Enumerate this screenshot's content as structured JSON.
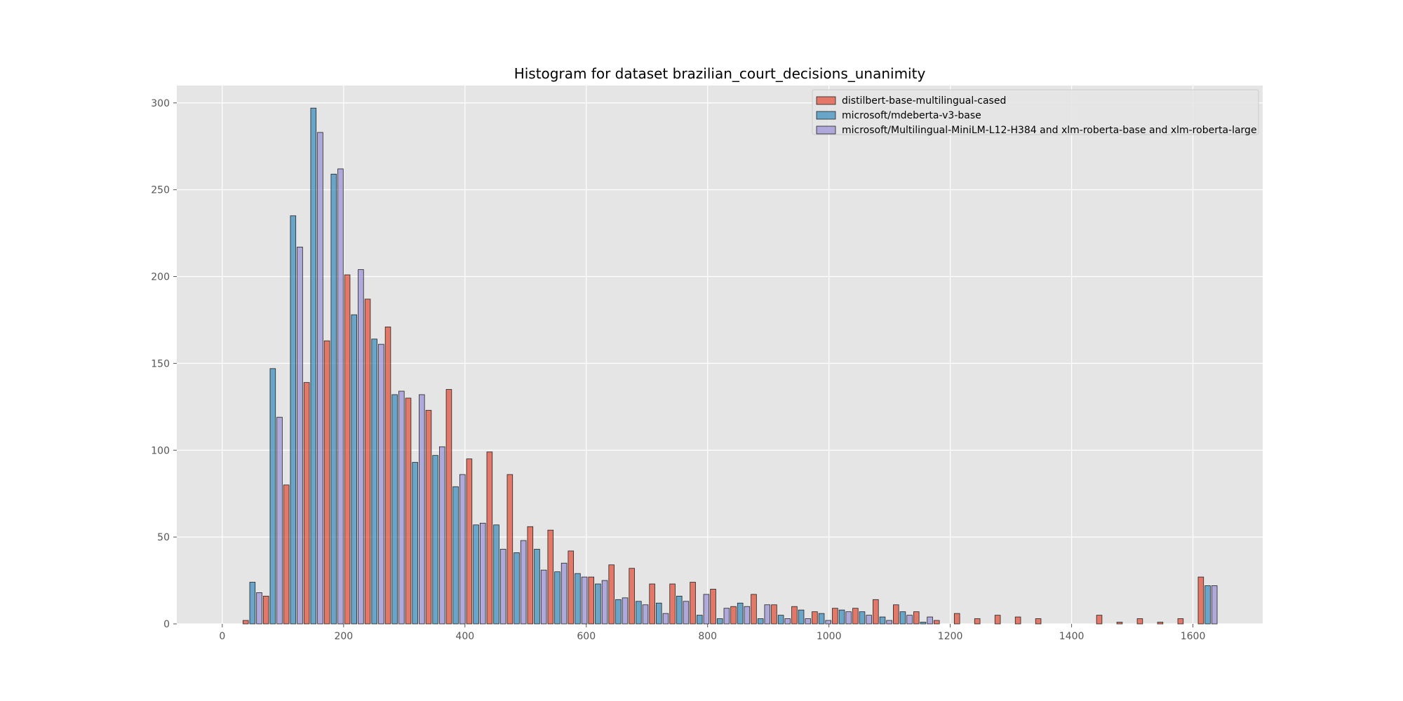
{
  "chart_data": {
    "type": "bar",
    "title": "Histogram for dataset brazilian_court_decisions_unanimity",
    "xlabel": "",
    "ylabel": "",
    "xlim": [
      -75,
      1715
    ],
    "ylim": [
      0,
      310
    ],
    "xticks": [
      0,
      200,
      400,
      600,
      800,
      1000,
      1200,
      1400,
      1600
    ],
    "yticks": [
      0,
      50,
      100,
      150,
      200,
      250,
      300
    ],
    "grid": true,
    "legend_position": "top-right",
    "bin_width": 33.5,
    "bin_starts": [
      33,
      66.5,
      100,
      133.5,
      167,
      200.5,
      234,
      267.5,
      301,
      334.5,
      368,
      401.5,
      435,
      468.5,
      502,
      535.5,
      569,
      602.5,
      636,
      669.5,
      703,
      736.5,
      770,
      803.5,
      837,
      870.5,
      904,
      937.5,
      971,
      1004.5,
      1038,
      1071.5,
      1105,
      1138.5,
      1172,
      1205.5,
      1239,
      1272.5,
      1306,
      1339.5,
      1373,
      1406.5,
      1440,
      1473.5,
      1507,
      1540.5,
      1574,
      1607.5
    ],
    "series": [
      {
        "name": "distilbert-base-multilingual-cased",
        "color": "#E24A33",
        "values": [
          2,
          16,
          80,
          139,
          163,
          201,
          187,
          171,
          130,
          123,
          135,
          95,
          99,
          86,
          56,
          54,
          42,
          27,
          34,
          32,
          23,
          23,
          24,
          20,
          10,
          17,
          11,
          10,
          7,
          9,
          9,
          14,
          11,
          7,
          2,
          6,
          3,
          5,
          4,
          3,
          0,
          0,
          5,
          1,
          3,
          1,
          3,
          27
        ]
      },
      {
        "name": "microsoft/mdeberta-v3-base",
        "color": "#348ABD",
        "values": [
          24,
          147,
          235,
          297,
          259,
          178,
          164,
          132,
          93,
          97,
          79,
          57,
          57,
          41,
          43,
          30,
          29,
          23,
          14,
          13,
          12,
          16,
          5,
          3,
          12,
          3,
          5,
          8,
          6,
          8,
          7,
          4,
          7,
          1,
          0,
          0,
          0,
          0,
          0,
          0,
          0,
          0,
          0,
          0,
          0,
          0,
          0,
          22
        ]
      },
      {
        "name": "microsoft/Multilingual-MiniLM-L12-H384 and xlm-roberta-base and xlm-roberta-large",
        "color": "#988ED5",
        "values": [
          18,
          119,
          217,
          283,
          262,
          204,
          161,
          134,
          132,
          102,
          86,
          58,
          43,
          48,
          31,
          35,
          27,
          25,
          15,
          11,
          6,
          13,
          17,
          9,
          10,
          11,
          3,
          3,
          2,
          7,
          5,
          2,
          5,
          4,
          0,
          0,
          0,
          0,
          0,
          0,
          0,
          0,
          0,
          0,
          0,
          0,
          0,
          22
        ]
      }
    ]
  }
}
